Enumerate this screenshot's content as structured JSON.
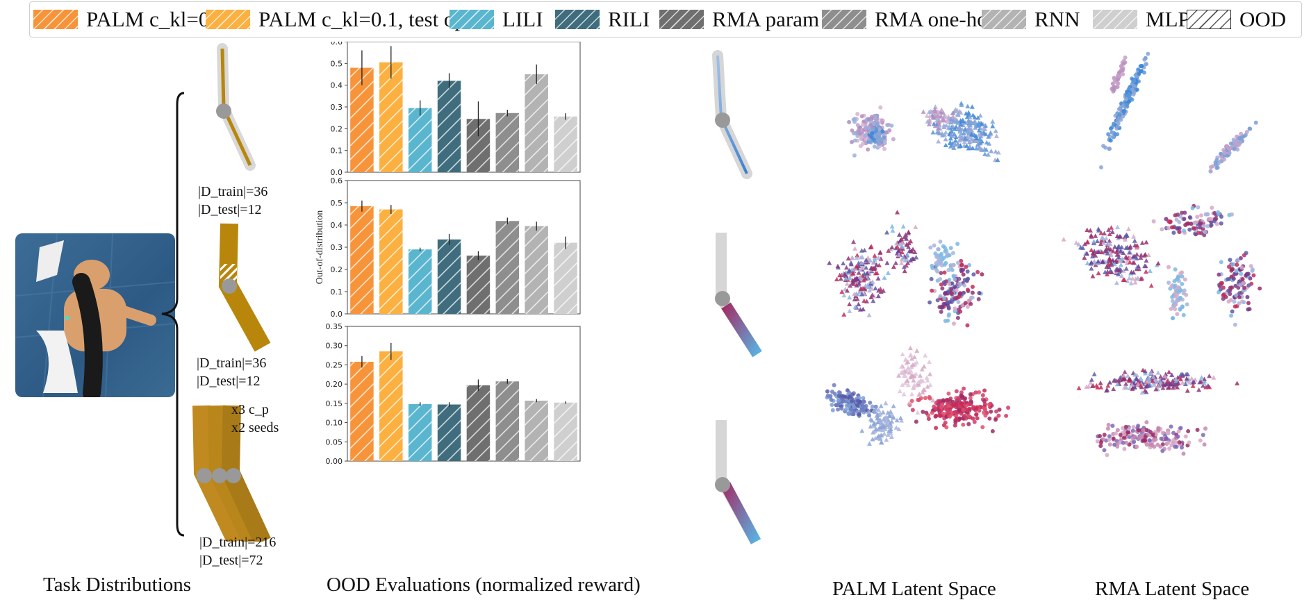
{
  "legend": [
    {
      "label": "PALM c_kl=0.1",
      "color": "#f7943a",
      "hatch": true
    },
    {
      "label": "PALM c_kl=0.1, test opt",
      "color": "#fbb040",
      "hatch": true
    },
    {
      "label": "LILI",
      "color": "#5ab5cf",
      "hatch": true
    },
    {
      "label": "RILI",
      "color": "#3f6d7d",
      "hatch": true
    },
    {
      "label": "RMA param",
      "color": "#6f6f6f",
      "hatch": true
    },
    {
      "label": "RMA one-hot",
      "color": "#8e8e8e",
      "hatch": true
    },
    {
      "label": "RNN",
      "color": "#b3b3b3",
      "hatch": true
    },
    {
      "label": "MLP",
      "color": "#cfcfcf",
      "hatch": true
    },
    {
      "label": "OOD",
      "color": "#ffffff",
      "hatch": true
    }
  ],
  "captions": {
    "task": "Task Distributions",
    "ood": "OOD Evaluations (normalized reward)",
    "palm": "PALM Latent Space",
    "rma": "RMA Latent Space"
  },
  "dataset_labels": [
    {
      "train": "|D_train|=36",
      "test": "|D_test|=12"
    },
    {
      "train": "|D_train|=36",
      "test": "|D_test|=12"
    },
    {
      "train": "|D_train|=216",
      "test": "|D_test|=72"
    }
  ],
  "multiplier_text": {
    "cp": "x3 c_p",
    "seeds": "x2 seeds"
  },
  "chart_data": [
    {
      "type": "bar",
      "categories": [
        "PALM c_kl=0.1",
        "PALM c_kl=0.1, test opt",
        "LILI",
        "RILI",
        "RMA param",
        "RMA one-hot",
        "RNN",
        "MLP"
      ],
      "values": [
        0.48,
        0.505,
        0.295,
        0.42,
        0.245,
        0.272,
        0.45,
        0.256
      ],
      "errors": [
        0.08,
        0.075,
        0.035,
        0.035,
        0.08,
        0.015,
        0.045,
        0.015
      ],
      "ylabel": "",
      "ylim": [
        0,
        0.6
      ],
      "yticks": [
        "0.0",
        "0.1",
        "0.2",
        "0.3",
        "0.4",
        "0.5",
        "0.6"
      ]
    },
    {
      "type": "bar",
      "categories": [
        "PALM c_kl=0.1",
        "PALM c_kl=0.1, test opt",
        "LILI",
        "RILI",
        "RMA param",
        "RMA one-hot",
        "RNN",
        "MLP"
      ],
      "values": [
        0.485,
        0.47,
        0.29,
        0.335,
        0.262,
        0.418,
        0.395,
        0.32
      ],
      "errors": [
        0.025,
        0.02,
        0.008,
        0.025,
        0.02,
        0.015,
        0.02,
        0.028
      ],
      "ylabel": "Out-of-distribution",
      "ylim": [
        0,
        0.6
      ],
      "yticks": [
        "0.0",
        "0.1",
        "0.2",
        "0.3",
        "0.4",
        "0.5",
        "0.6"
      ]
    },
    {
      "type": "bar",
      "categories": [
        "PALM c_kl=0.1",
        "PALM c_kl=0.1, test opt",
        "LILI",
        "RILI",
        "RMA param",
        "RMA one-hot",
        "RNN",
        "MLP"
      ],
      "values": [
        0.258,
        0.285,
        0.148,
        0.147,
        0.197,
        0.207,
        0.157,
        0.152
      ],
      "errors": [
        0.015,
        0.022,
        0.005,
        0.006,
        0.015,
        0.006,
        0.004,
        0.003
      ],
      "ylabel": "",
      "ylim": [
        0,
        0.35
      ],
      "yticks": [
        "0.00",
        "0.05",
        "0.10",
        "0.15",
        "0.20",
        "0.25",
        "0.30",
        "0.35"
      ]
    }
  ]
}
